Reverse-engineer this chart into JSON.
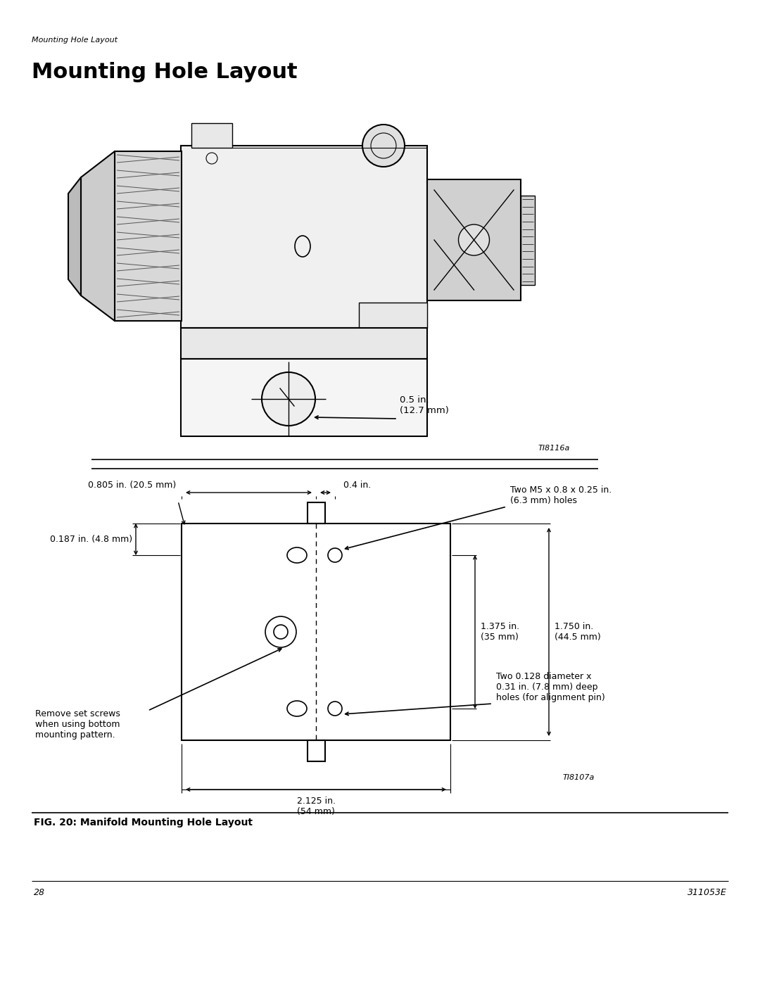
{
  "page_title_italic": "Mounting Hole Layout",
  "page_title_bold": "Mounting Hole Layout",
  "fig_label": "FIG. 20: Manifold Mounting Hole Layout",
  "page_number": "28",
  "doc_number": "311053E",
  "ref_top": "TI8116a",
  "ref_bottom": "TI8107a",
  "annotation_05in": "0.5 in.\n(12.7 mm)",
  "annotation_0805": "0.805 in. (20.5 mm)",
  "annotation_04": "0.4 in.",
  "annotation_two_m5": "Two M5 x 0.8 x 0.25 in.\n(6.3 mm) holes",
  "annotation_0187": "0.187 in. (4.8 mm)",
  "annotation_1375": "1.375 in.\n(35 mm)",
  "annotation_175": "1.750 in.\n(44.5 mm)",
  "annotation_remove": "Remove set screws\nwhen using bottom\nmounting pattern.",
  "annotation_2125": "2.125 in.\n(54 mm)",
  "annotation_two_0128": "Two 0.128 diameter x\n0.31 in. (7.8 mm) deep\nholes (for alignment pin)",
  "bg_color": "#ffffff",
  "line_color": "#000000"
}
